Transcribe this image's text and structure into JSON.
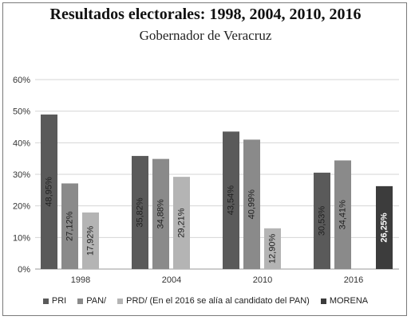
{
  "chart_data": {
    "type": "bar",
    "title": "Resultados electorales: 1998, 2004, 2010, 2016",
    "subtitle": "Gobernador de Veracruz",
    "categories": [
      "1998",
      "2004",
      "2010",
      "2016"
    ],
    "ylim": [
      0,
      60
    ],
    "yticks": [
      "0%",
      "10%",
      "20%",
      "30%",
      "40%",
      "50%",
      "60%"
    ],
    "grid": true,
    "legend_position": "bottom",
    "series": [
      {
        "name": "PRI",
        "color": "#5a5a5a",
        "values": [
          48.95,
          35.82,
          43.54,
          30.53
        ],
        "labels": [
          "48,95%",
          "35,82%",
          "43,54%",
          "30,53%"
        ]
      },
      {
        "name": "PAN/",
        "color": "#8a8a8a",
        "values": [
          27.12,
          34.88,
          40.99,
          34.41
        ],
        "labels": [
          "27,12%",
          "34,88%",
          "40,99%",
          "34,41%"
        ]
      },
      {
        "name": "PRD/ (En el 2016 se alía al candidato del PAN)",
        "color": "#b4b4b4",
        "values": [
          17.92,
          29.21,
          12.9,
          null
        ],
        "labels": [
          "17,92%",
          "29,21%",
          "12,90%",
          null
        ]
      },
      {
        "name": "MORENA",
        "color": "#3c3c3c",
        "values": [
          null,
          null,
          null,
          26.25
        ],
        "labels": [
          null,
          null,
          null,
          "26,25%"
        ]
      }
    ]
  }
}
